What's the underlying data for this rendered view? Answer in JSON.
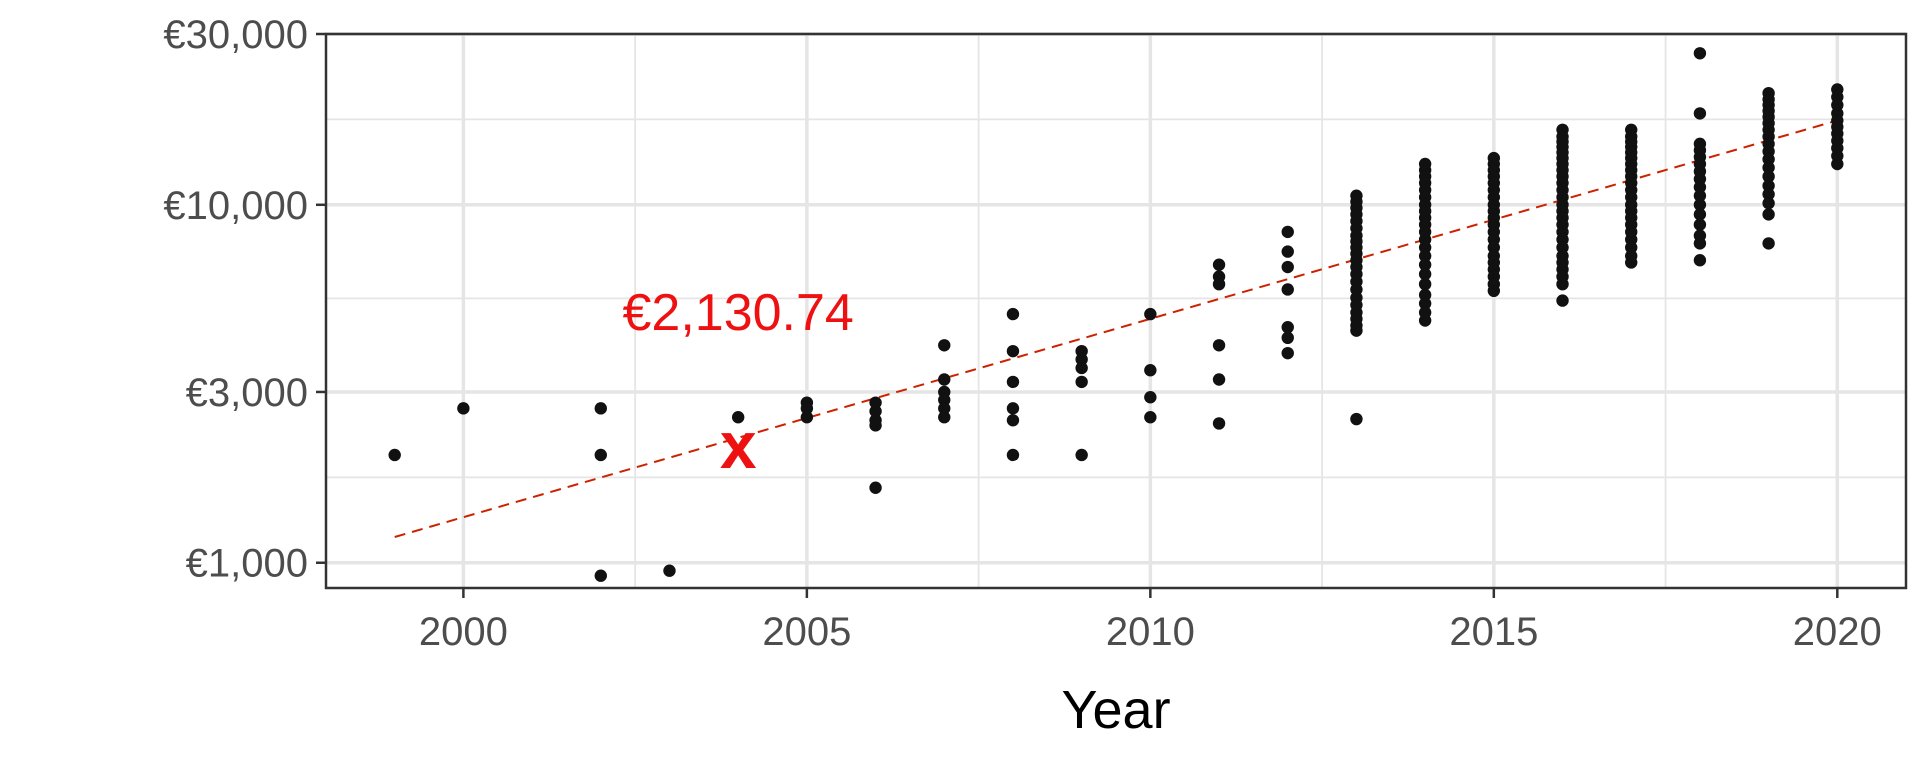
{
  "chart_data": {
    "type": "scatter",
    "title": "",
    "xlabel": "Year",
    "ylabel": "",
    "xlim": [
      1998,
      2021
    ],
    "ylim": [
      850,
      30000
    ],
    "yscale": "log",
    "x_ticks": [
      2000,
      2005,
      2010,
      2015,
      2020
    ],
    "x_tick_labels": [
      "2000",
      "2005",
      "2010",
      "2015",
      "2020"
    ],
    "y_ticks": [
      1000,
      3000,
      10000,
      30000
    ],
    "y_tick_labels": [
      "€1,000",
      "€3,000",
      "€10,000",
      "€30,000"
    ],
    "grid": true,
    "legend": "none",
    "colors": {
      "points": "#111111",
      "trend": "#cc2200",
      "annotation": "#ee1111",
      "grid": "#e5e5e5",
      "frame": "#333333"
    },
    "trend": {
      "style": "dashed",
      "x": [
        1999,
        2020
      ],
      "y": [
        1180,
        17200
      ]
    },
    "annotation": {
      "x": 2004,
      "y": 2130.74,
      "marker": "x",
      "label": "€2,130.74"
    },
    "points": [
      [
        1999,
        2000
      ],
      [
        2000,
        2700
      ],
      [
        2002,
        2700
      ],
      [
        2002,
        2000
      ],
      [
        2002,
        920
      ],
      [
        2003,
        950
      ],
      [
        2004,
        2550
      ],
      [
        2005,
        2800
      ],
      [
        2005,
        2700
      ],
      [
        2005,
        2550
      ],
      [
        2006,
        2800
      ],
      [
        2006,
        2650
      ],
      [
        2006,
        2500
      ],
      [
        2006,
        2420
      ],
      [
        2006,
        1620
      ],
      [
        2007,
        4050
      ],
      [
        2007,
        3250
      ],
      [
        2007,
        3000
      ],
      [
        2007,
        2850
      ],
      [
        2007,
        2700
      ],
      [
        2007,
        2550
      ],
      [
        2008,
        4950
      ],
      [
        2008,
        3900
      ],
      [
        2008,
        3200
      ],
      [
        2008,
        2700
      ],
      [
        2008,
        2500
      ],
      [
        2008,
        2000
      ],
      [
        2009,
        3900
      ],
      [
        2009,
        3700
      ],
      [
        2009,
        3500
      ],
      [
        2009,
        3200
      ],
      [
        2009,
        2000
      ],
      [
        2010,
        4950
      ],
      [
        2010,
        3450
      ],
      [
        2010,
        2900
      ],
      [
        2010,
        2550
      ],
      [
        2011,
        6800
      ],
      [
        2011,
        6300
      ],
      [
        2011,
        6000
      ],
      [
        2011,
        4050
      ],
      [
        2011,
        3250
      ],
      [
        2011,
        2450
      ],
      [
        2012,
        8400
      ],
      [
        2012,
        7400
      ],
      [
        2012,
        6700
      ],
      [
        2012,
        5800
      ],
      [
        2012,
        4550
      ],
      [
        2012,
        4250
      ],
      [
        2012,
        3850
      ],
      [
        2013,
        10600
      ],
      [
        2013,
        10200
      ],
      [
        2013,
        9800
      ],
      [
        2013,
        9400
      ],
      [
        2013,
        9000
      ],
      [
        2013,
        8600
      ],
      [
        2013,
        8200
      ],
      [
        2013,
        7900
      ],
      [
        2013,
        7600
      ],
      [
        2013,
        7300
      ],
      [
        2013,
        7000
      ],
      [
        2013,
        6700
      ],
      [
        2013,
        6400
      ],
      [
        2013,
        6100
      ],
      [
        2013,
        5800
      ],
      [
        2013,
        5500
      ],
      [
        2013,
        5250
      ],
      [
        2013,
        5000
      ],
      [
        2013,
        4800
      ],
      [
        2013,
        4600
      ],
      [
        2013,
        4450
      ],
      [
        2013,
        2520
      ],
      [
        2014,
        13000
      ],
      [
        2014,
        12500
      ],
      [
        2014,
        12000
      ],
      [
        2014,
        11500
      ],
      [
        2014,
        11000
      ],
      [
        2014,
        10500
      ],
      [
        2014,
        10000
      ],
      [
        2014,
        9600
      ],
      [
        2014,
        9200
      ],
      [
        2014,
        8800
      ],
      [
        2014,
        8400
      ],
      [
        2014,
        8000
      ],
      [
        2014,
        7600
      ],
      [
        2014,
        7200
      ],
      [
        2014,
        6800
      ],
      [
        2014,
        6400
      ],
      [
        2014,
        6000
      ],
      [
        2014,
        5600
      ],
      [
        2014,
        5300
      ],
      [
        2014,
        5000
      ],
      [
        2014,
        4750
      ],
      [
        2015,
        13500
      ],
      [
        2015,
        13000
      ],
      [
        2015,
        12500
      ],
      [
        2015,
        12000
      ],
      [
        2015,
        11500
      ],
      [
        2015,
        11000
      ],
      [
        2015,
        10500
      ],
      [
        2015,
        10000
      ],
      [
        2015,
        9600
      ],
      [
        2015,
        9200
      ],
      [
        2015,
        8800
      ],
      [
        2015,
        8400
      ],
      [
        2015,
        8000
      ],
      [
        2015,
        7600
      ],
      [
        2015,
        7200
      ],
      [
        2015,
        6900
      ],
      [
        2015,
        6600
      ],
      [
        2015,
        6300
      ],
      [
        2015,
        6000
      ],
      [
        2015,
        5750
      ],
      [
        2016,
        16200
      ],
      [
        2016,
        15500
      ],
      [
        2016,
        15000
      ],
      [
        2016,
        14500
      ],
      [
        2016,
        14000
      ],
      [
        2016,
        13500
      ],
      [
        2016,
        13000
      ],
      [
        2016,
        12500
      ],
      [
        2016,
        12000
      ],
      [
        2016,
        11500
      ],
      [
        2016,
        11000
      ],
      [
        2016,
        10500
      ],
      [
        2016,
        10000
      ],
      [
        2016,
        9600
      ],
      [
        2016,
        9200
      ],
      [
        2016,
        8800
      ],
      [
        2016,
        8400
      ],
      [
        2016,
        8000
      ],
      [
        2016,
        7600
      ],
      [
        2016,
        7200
      ],
      [
        2016,
        6900
      ],
      [
        2016,
        6600
      ],
      [
        2016,
        6300
      ],
      [
        2016,
        6000
      ],
      [
        2016,
        5400
      ],
      [
        2017,
        16200
      ],
      [
        2017,
        15500
      ],
      [
        2017,
        15000
      ],
      [
        2017,
        14500
      ],
      [
        2017,
        14000
      ],
      [
        2017,
        13500
      ],
      [
        2017,
        13000
      ],
      [
        2017,
        12500
      ],
      [
        2017,
        12000
      ],
      [
        2017,
        11500
      ],
      [
        2017,
        11000
      ],
      [
        2017,
        10500
      ],
      [
        2017,
        10000
      ],
      [
        2017,
        9600
      ],
      [
        2017,
        9200
      ],
      [
        2017,
        8800
      ],
      [
        2017,
        8400
      ],
      [
        2017,
        8000
      ],
      [
        2017,
        7600
      ],
      [
        2017,
        7200
      ],
      [
        2017,
        6900
      ],
      [
        2018,
        26500
      ],
      [
        2018,
        18000
      ],
      [
        2018,
        14800
      ],
      [
        2018,
        14200
      ],
      [
        2018,
        13600
      ],
      [
        2018,
        13000
      ],
      [
        2018,
        12400
      ],
      [
        2018,
        11800
      ],
      [
        2018,
        11200
      ],
      [
        2018,
        10600
      ],
      [
        2018,
        10000
      ],
      [
        2018,
        9400
      ],
      [
        2018,
        8800
      ],
      [
        2018,
        8200
      ],
      [
        2018,
        7800
      ],
      [
        2018,
        7000
      ],
      [
        2019,
        20500
      ],
      [
        2019,
        19700
      ],
      [
        2019,
        19000
      ],
      [
        2019,
        18300
      ],
      [
        2019,
        17600
      ],
      [
        2019,
        16900
      ],
      [
        2019,
        16200
      ],
      [
        2019,
        15500
      ],
      [
        2019,
        14800
      ],
      [
        2019,
        14100
      ],
      [
        2019,
        13400
      ],
      [
        2019,
        12700
      ],
      [
        2019,
        12000
      ],
      [
        2019,
        11300
      ],
      [
        2019,
        10700
      ],
      [
        2019,
        10100
      ],
      [
        2019,
        9400
      ],
      [
        2019,
        7800
      ],
      [
        2020,
        21000
      ],
      [
        2020,
        20000
      ],
      [
        2020,
        19000
      ],
      [
        2020,
        18000
      ],
      [
        2020,
        17200
      ],
      [
        2020,
        16500
      ],
      [
        2020,
        15800
      ],
      [
        2020,
        15100
      ],
      [
        2020,
        14400
      ],
      [
        2020,
        13700
      ],
      [
        2020,
        13000
      ]
    ]
  }
}
